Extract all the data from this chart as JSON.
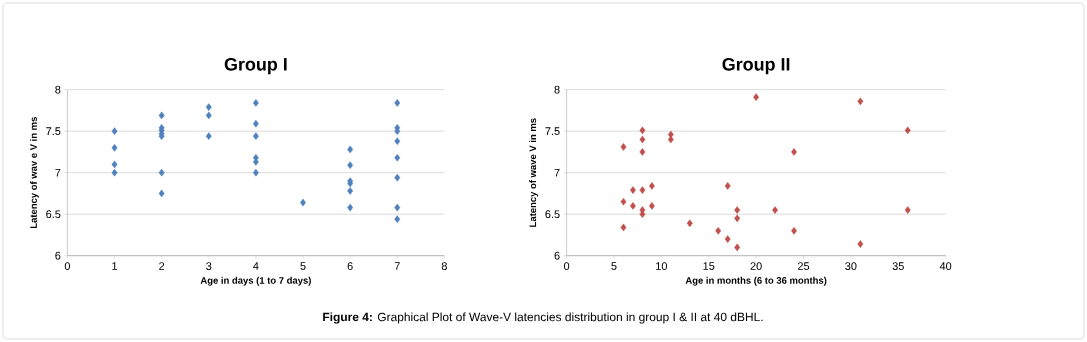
{
  "chart_data": [
    {
      "type": "scatter",
      "title": "Group I",
      "xlabel": "Age in days (1 to 7 days)",
      "ylabel": "Latency of wav e V in ms",
      "xlim": [
        0,
        8
      ],
      "ylim": [
        6,
        8
      ],
      "xticks": [
        0,
        1,
        2,
        3,
        4,
        5,
        6,
        7,
        8
      ],
      "yticks": [
        6,
        6.5,
        7,
        7.5,
        8
      ],
      "grid": "y",
      "legend": false,
      "marker": "diamond",
      "series": [
        {
          "color": "#4f81bd",
          "x": [
            1,
            1,
            1,
            1,
            2,
            2,
            2,
            2,
            2,
            2,
            2,
            3,
            3,
            3,
            4,
            4,
            4,
            4,
            4,
            4,
            5,
            6,
            6,
            6,
            6,
            6,
            6,
            7,
            7,
            7,
            7,
            7,
            7,
            7,
            7
          ],
          "values": [
            7.5,
            7.3,
            7.1,
            7.0,
            7.69,
            7.54,
            7.51,
            7.47,
            7.44,
            7.0,
            6.75,
            7.79,
            7.69,
            7.44,
            7.84,
            7.59,
            7.44,
            7.18,
            7.13,
            7.0,
            6.64,
            7.28,
            7.09,
            6.9,
            6.87,
            6.78,
            6.58,
            7.84,
            7.54,
            7.5,
            7.38,
            7.18,
            6.94,
            6.58,
            6.44
          ]
        }
      ]
    },
    {
      "type": "scatter",
      "title": "Group II",
      "xlabel": "Age in months (6 to 36 months)",
      "ylabel": "Latency of wave V in ms",
      "xlim": [
        0,
        40
      ],
      "ylim": [
        6,
        8
      ],
      "xticks": [
        0,
        5,
        10,
        15,
        20,
        25,
        30,
        35,
        40
      ],
      "yticks": [
        6,
        6.5,
        7,
        7.5,
        8
      ],
      "grid": "y",
      "legend": false,
      "marker": "diamond",
      "annotations": [
        "**Figure 4:** Graphical Plot of Wave-V latencies distribution in group I & II at 40 dBHL."
      ],
      "series": [
        {
          "color": "#c0504d",
          "x": [
            6,
            6,
            6,
            7,
            7,
            8,
            8,
            8,
            8,
            8,
            8,
            9,
            9,
            11,
            11,
            13,
            16,
            17,
            17,
            18,
            18,
            18,
            20,
            22,
            24,
            24,
            31,
            31,
            36,
            36
          ],
          "values": [
            7.31,
            6.65,
            6.34,
            6.79,
            6.6,
            7.51,
            7.4,
            7.25,
            6.79,
            6.55,
            6.5,
            6.84,
            6.6,
            7.46,
            7.4,
            6.39,
            6.3,
            6.84,
            6.2,
            6.55,
            6.45,
            6.1,
            7.91,
            6.55,
            7.25,
            6.3,
            7.86,
            6.14,
            7.51,
            6.55
          ]
        }
      ]
    }
  ]
}
